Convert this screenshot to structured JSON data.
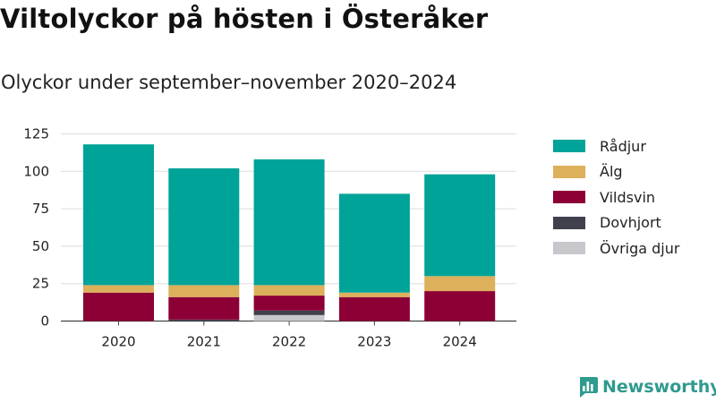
{
  "header": {
    "title": "Viltolyckor på hösten i Österåker",
    "subtitle": "Olyckor under september–november 2020–2024"
  },
  "chart_data": {
    "type": "bar",
    "stacked": true,
    "categories": [
      "2020",
      "2021",
      "2022",
      "2023",
      "2024"
    ],
    "series": [
      {
        "name": "Övriga djur",
        "color": "#c8c7cc",
        "values": [
          0,
          0,
          4,
          0,
          0
        ]
      },
      {
        "name": "Dovhjort",
        "color": "#41404d",
        "values": [
          0,
          1,
          3,
          0,
          0
        ]
      },
      {
        "name": "Vildsvin",
        "color": "#8c0036",
        "values": [
          19,
          15,
          10,
          16,
          20
        ]
      },
      {
        "name": "Älg",
        "color": "#ddb05b",
        "values": [
          5,
          8,
          7,
          3,
          10
        ]
      },
      {
        "name": "Rådjur",
        "color": "#00a398",
        "values": [
          94,
          78,
          84,
          66,
          68
        ]
      }
    ],
    "yticks": [
      0,
      25,
      50,
      75,
      100,
      125
    ],
    "ylim": [
      0,
      125
    ],
    "grid": true,
    "legend_position": "right",
    "legend_order": [
      "Rådjur",
      "Älg",
      "Vildsvin",
      "Dovhjort",
      "Övriga djur"
    ]
  },
  "branding": {
    "logo_label": "Newsworthy",
    "logo_icon": "newsworthy-chart-icon",
    "accent_color": "#2f9a8e"
  }
}
